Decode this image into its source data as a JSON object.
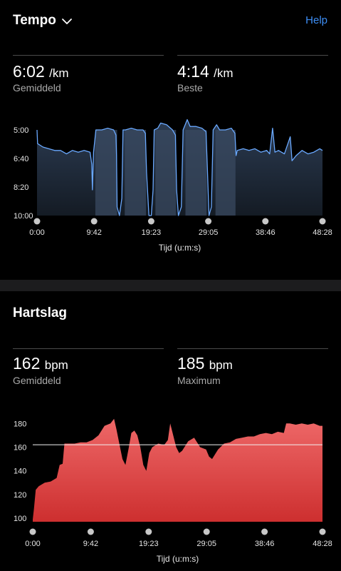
{
  "header": {
    "title": "Tempo",
    "help_label": "Help"
  },
  "pace": {
    "avg_value": "6:02",
    "avg_unit": "/km",
    "avg_label": "Gemiddeld",
    "best_value": "4:14",
    "best_unit": "/km",
    "best_label": "Beste"
  },
  "heart": {
    "title": "Hartslag",
    "avg_value": "162",
    "avg_unit": "bpm",
    "avg_label": "Gemiddeld",
    "max_value": "185",
    "max_unit": "bpm",
    "max_label": "Maximum"
  },
  "chart_data": [
    {
      "type": "area",
      "name": "pace-chart",
      "xlabel": "Tijd (u:m:s)",
      "ylabel": "",
      "x_ticks": [
        "0:00",
        "9:42",
        "19:23",
        "29:05",
        "38:46",
        "48:28"
      ],
      "y_ticks": [
        "5:00",
        "6:40",
        "8:20",
        "10:00"
      ],
      "x_unit": "minutes",
      "y_unit": "min/km",
      "xlim": [
        0,
        48.47
      ],
      "ylim": [
        5.0,
        10.0
      ],
      "y_inverted": true,
      "series_color": "#6aa9ff",
      "fill_top": "#2c3c53",
      "fill_bottom": "#141b24",
      "interval_fill": "#3a4a60",
      "points": [
        [
          0,
          5.0
        ],
        [
          0.1,
          5.8
        ],
        [
          1,
          6.0
        ],
        [
          2,
          6.1
        ],
        [
          3,
          6.2
        ],
        [
          4,
          6.2
        ],
        [
          5,
          6.4
        ],
        [
          6,
          6.2
        ],
        [
          7,
          6.3
        ],
        [
          8,
          6.2
        ],
        [
          9,
          6.3
        ],
        [
          9.3,
          7.0
        ],
        [
          9.4,
          8.5
        ],
        [
          9.6,
          6.3
        ],
        [
          10,
          5.0
        ],
        [
          11,
          5.0
        ],
        [
          12,
          4.9
        ],
        [
          13,
          5.0
        ],
        [
          13.4,
          5.3
        ],
        [
          13.5,
          6.5
        ],
        [
          13.6,
          9.5
        ],
        [
          14,
          10.0
        ],
        [
          14.4,
          9.0
        ],
        [
          14.6,
          5.0
        ],
        [
          15,
          5.0
        ],
        [
          16,
          4.9
        ],
        [
          17,
          5.0
        ],
        [
          18,
          5.0
        ],
        [
          18.4,
          5.2
        ],
        [
          18.6,
          7.5
        ],
        [
          19,
          10.0
        ],
        [
          19.4,
          10.0
        ],
        [
          19.7,
          8.5
        ],
        [
          19.9,
          5.0
        ],
        [
          20.5,
          4.9
        ],
        [
          21,
          4.6
        ],
        [
          22,
          4.7
        ],
        [
          23,
          5.0
        ],
        [
          23.5,
          5.3
        ],
        [
          23.7,
          8.5
        ],
        [
          24,
          10.0
        ],
        [
          24.5,
          9.5
        ],
        [
          24.8,
          5.0
        ],
        [
          25.5,
          4.4
        ],
        [
          26,
          4.8
        ],
        [
          27,
          4.8
        ],
        [
          28,
          4.9
        ],
        [
          28.7,
          5.1
        ],
        [
          28.9,
          7.0
        ],
        [
          29.2,
          10.0
        ],
        [
          29.6,
          9.5
        ],
        [
          29.9,
          5.0
        ],
        [
          30.5,
          4.7
        ],
        [
          31,
          5.0
        ],
        [
          32,
          5.0
        ],
        [
          33,
          4.9
        ],
        [
          33.6,
          5.2
        ],
        [
          33.8,
          6.5
        ],
        [
          34,
          6.2
        ],
        [
          35,
          6.1
        ],
        [
          36,
          6.2
        ],
        [
          37,
          6.1
        ],
        [
          38,
          6.3
        ],
        [
          39,
          6.2
        ],
        [
          39.5,
          6.4
        ],
        [
          40,
          4.9
        ],
        [
          40.4,
          6.3
        ],
        [
          41,
          6.2
        ],
        [
          42,
          6.4
        ],
        [
          43,
          5.4
        ],
        [
          43.3,
          6.8
        ],
        [
          44,
          6.5
        ],
        [
          45,
          6.2
        ],
        [
          46,
          6.4
        ],
        [
          47,
          6.3
        ],
        [
          48,
          6.1
        ],
        [
          48.47,
          6.2
        ]
      ],
      "intervals": [
        [
          9.9,
          13.6
        ],
        [
          14.9,
          18.5
        ],
        [
          20.1,
          23.6
        ],
        [
          25.2,
          28.8
        ],
        [
          30.3,
          33.7
        ]
      ]
    },
    {
      "type": "area",
      "name": "heart-rate-chart",
      "xlabel": "Tijd (u:m:s)",
      "ylabel": "",
      "x_ticks": [
        "0:00",
        "9:42",
        "19:23",
        "29:05",
        "38:46",
        "48:28"
      ],
      "y_ticks": [
        "100",
        "120",
        "140",
        "160",
        "180"
      ],
      "x_unit": "minutes",
      "y_unit": "bpm",
      "xlim": [
        0,
        48.47
      ],
      "ylim": [
        97,
        185
      ],
      "avg_line": 162,
      "fill_top": "#ee6868",
      "fill_bottom": "#cd2f2f",
      "points": [
        [
          0,
          99
        ],
        [
          0.2,
          108
        ],
        [
          0.5,
          124
        ],
        [
          1,
          127
        ],
        [
          2,
          130
        ],
        [
          3,
          131
        ],
        [
          4,
          134
        ],
        [
          4.5,
          145
        ],
        [
          5,
          146
        ],
        [
          5.3,
          163
        ],
        [
          6,
          163
        ],
        [
          7,
          163
        ],
        [
          8,
          164
        ],
        [
          9,
          164
        ],
        [
          10,
          166
        ],
        [
          11,
          170
        ],
        [
          12,
          178
        ],
        [
          13,
          180
        ],
        [
          13.6,
          184
        ],
        [
          14,
          175
        ],
        [
          14.6,
          160
        ],
        [
          15,
          150
        ],
        [
          15.5,
          145
        ],
        [
          16,
          158
        ],
        [
          16.5,
          172
        ],
        [
          17,
          174
        ],
        [
          17.5,
          170
        ],
        [
          18,
          160
        ],
        [
          18.5,
          145
        ],
        [
          19,
          140
        ],
        [
          19.5,
          155
        ],
        [
          20,
          160
        ],
        [
          21,
          163
        ],
        [
          22,
          162
        ],
        [
          22.6,
          166
        ],
        [
          23,
          180
        ],
        [
          23.5,
          170
        ],
        [
          24,
          160
        ],
        [
          24.5,
          155
        ],
        [
          25,
          157
        ],
        [
          26,
          165
        ],
        [
          27,
          168
        ],
        [
          28,
          160
        ],
        [
          29,
          158
        ],
        [
          29.5,
          152
        ],
        [
          30,
          150
        ],
        [
          31,
          158
        ],
        [
          32,
          163
        ],
        [
          33,
          164
        ],
        [
          34,
          167
        ],
        [
          35,
          168
        ],
        [
          36,
          169
        ],
        [
          37,
          169
        ],
        [
          38,
          171
        ],
        [
          39,
          172
        ],
        [
          40,
          171
        ],
        [
          41,
          173
        ],
        [
          42,
          172
        ],
        [
          42.4,
          180
        ],
        [
          43,
          180
        ],
        [
          44,
          179
        ],
        [
          45,
          180
        ],
        [
          46,
          179
        ],
        [
          47,
          180
        ],
        [
          48,
          178
        ],
        [
          48.47,
          178
        ]
      ]
    }
  ]
}
